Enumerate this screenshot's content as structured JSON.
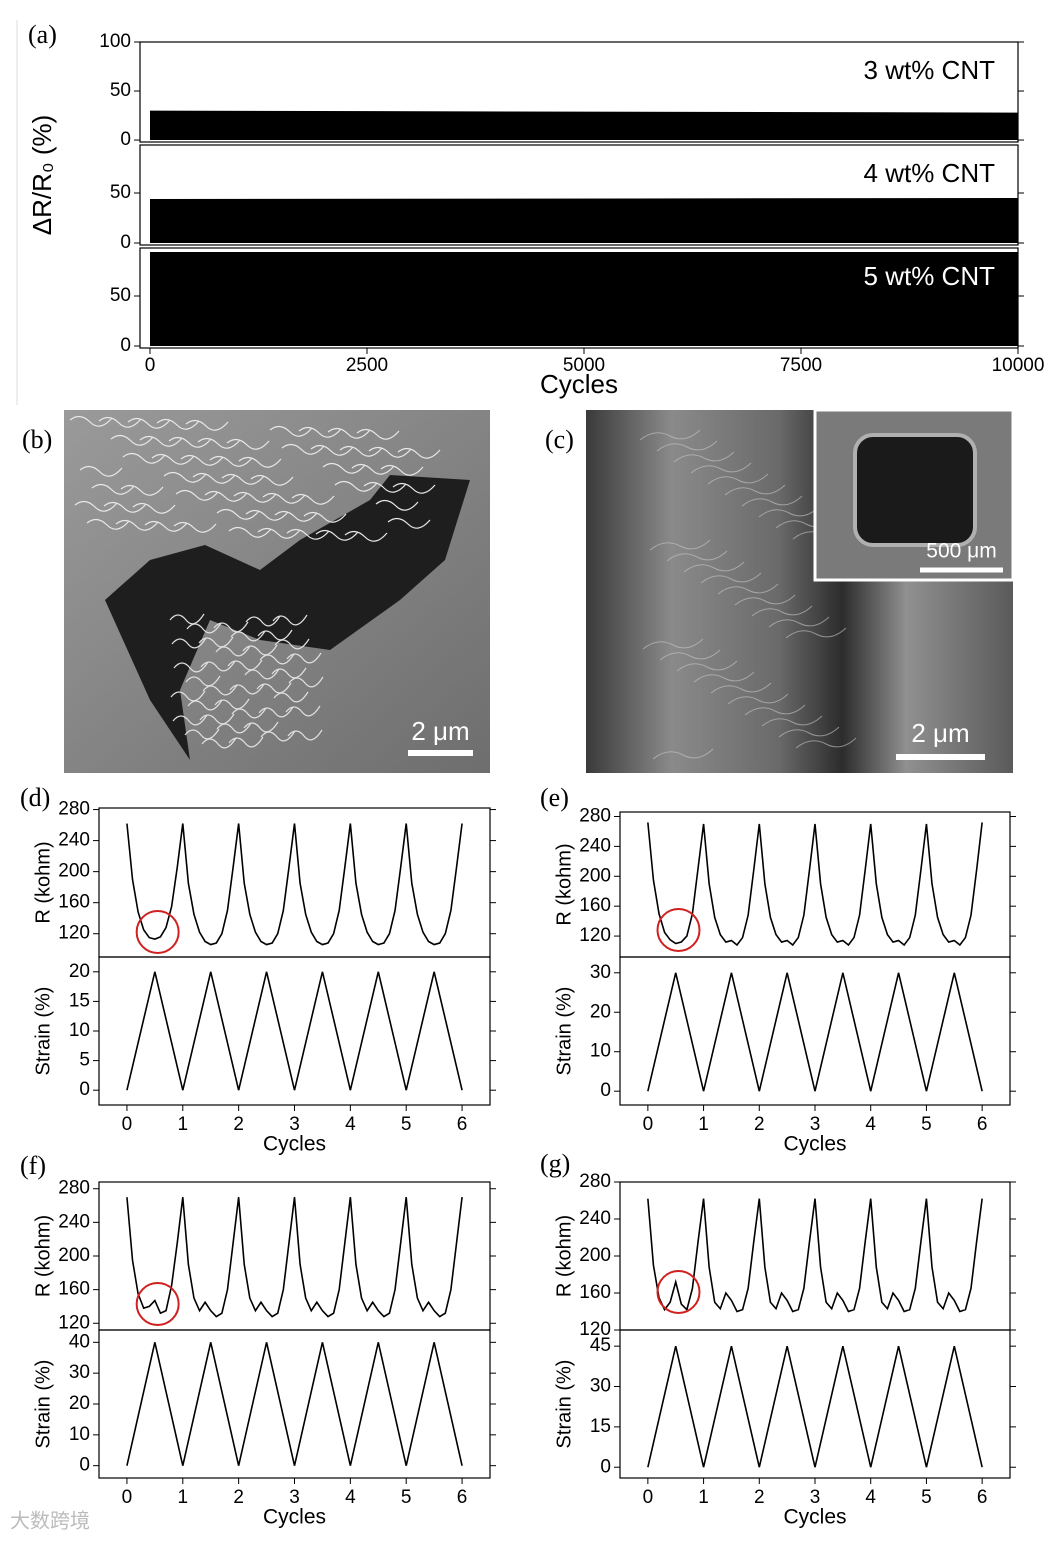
{
  "chart_data": [
    {
      "type": "stacked-area",
      "panel_label": "(a)",
      "ylabel": "ΔR/R₀ (%)",
      "xlabel": "Cycles",
      "xlim": [
        -115,
        10000
      ],
      "xticks": [
        0,
        2500,
        5000,
        7500,
        10000
      ],
      "color": "#000000",
      "panels": [
        {
          "label": "3 wt% CNT",
          "ylim": [
            -2,
            100
          ],
          "yticks": [
            0,
            50,
            100
          ],
          "x": [
            0,
            10000
          ],
          "values": [
            30,
            28
          ]
        },
        {
          "label": "4 wt% CNT",
          "ylim": [
            -2,
            98
          ],
          "yticks": [
            0,
            50
          ],
          "x": [
            0,
            10000
          ],
          "values": [
            44,
            45
          ]
        },
        {
          "label": "5 wt% CNT",
          "ylim": [
            -2,
            98
          ],
          "yticks": [
            0,
            50
          ],
          "x": [
            0,
            10000
          ],
          "values": [
            94,
            94
          ]
        }
      ]
    },
    {
      "type": "image",
      "panel_label": "(b)",
      "scale_bar": "2 μm"
    },
    {
      "type": "image",
      "panel_label": "(c)",
      "scale_bar": "2 μm",
      "inset_scale_bar": "500 μm"
    },
    {
      "type": "dual-line",
      "panel_label": "(d)",
      "xlabel": "Cycles",
      "xlim": [
        -0.5,
        6.5
      ],
      "xticks": [
        0,
        1,
        2,
        3,
        4,
        5,
        6
      ],
      "color": "#000000",
      "top": {
        "ylabel": "R (kohm)",
        "ylim": [
          90,
          282
        ],
        "yticks": [
          120,
          160,
          200,
          240,
          280
        ],
        "x": [
          0,
          0.1,
          0.2,
          0.3,
          0.4,
          0.5,
          0.6,
          0.7,
          0.8,
          0.9,
          1,
          1.1,
          1.2,
          1.3,
          1.4,
          1.5,
          1.6,
          1.7,
          1.8,
          1.9,
          2,
          2.1,
          2.2,
          2.3,
          2.4,
          2.5,
          2.6,
          2.7,
          2.8,
          2.9,
          3,
          3.1,
          3.2,
          3.3,
          3.4,
          3.5,
          3.6,
          3.7,
          3.8,
          3.9,
          4,
          4.1,
          4.2,
          4.3,
          4.4,
          4.5,
          4.6,
          4.7,
          4.8,
          4.9,
          5,
          5.1,
          5.2,
          5.3,
          5.4,
          5.5,
          5.6,
          5.7,
          5.8,
          5.9,
          6
        ],
        "values": [
          262,
          190,
          148,
          125,
          115,
          113,
          116,
          128,
          155,
          205,
          262,
          185,
          145,
          122,
          110,
          106,
          108,
          120,
          150,
          205,
          262,
          185,
          145,
          122,
          110,
          106,
          108,
          120,
          150,
          205,
          262,
          185,
          145,
          122,
          110,
          106,
          108,
          120,
          150,
          205,
          262,
          185,
          145,
          122,
          110,
          106,
          108,
          120,
          150,
          205,
          262,
          185,
          145,
          122,
          110,
          106,
          108,
          120,
          150,
          205,
          262
        ]
      },
      "bottom": {
        "ylabel": "Strain (%)",
        "ylim": [
          -2.5,
          22.5
        ],
        "yticks": [
          0,
          5,
          10,
          15,
          20
        ],
        "x": [
          0,
          0.5,
          1,
          1.5,
          2,
          2.5,
          3,
          3.5,
          4,
          4.5,
          5,
          5.5,
          6
        ],
        "values": [
          0,
          20,
          0,
          20,
          0,
          20,
          0,
          20,
          0,
          20,
          0,
          20,
          0
        ]
      }
    },
    {
      "type": "dual-line",
      "panel_label": "(e)",
      "xlabel": "Cycles",
      "xlim": [
        -0.5,
        6.5
      ],
      "xticks": [
        0,
        1,
        2,
        3,
        4,
        5,
        6
      ],
      "color": "#000000",
      "top": {
        "ylabel": "R (kohm)",
        "ylim": [
          92,
          286
        ],
        "yticks": [
          120,
          160,
          200,
          240,
          280
        ],
        "x": [
          0,
          0.1,
          0.2,
          0.3,
          0.4,
          0.5,
          0.6,
          0.7,
          0.8,
          0.9,
          1,
          1.1,
          1.2,
          1.3,
          1.4,
          1.5,
          1.6,
          1.7,
          1.8,
          1.9,
          2,
          2.1,
          2.2,
          2.3,
          2.4,
          2.5,
          2.6,
          2.7,
          2.8,
          2.9,
          3,
          3.1,
          3.2,
          3.3,
          3.4,
          3.5,
          3.6,
          3.7,
          3.8,
          3.9,
          4,
          4.1,
          4.2,
          4.3,
          4.4,
          4.5,
          4.6,
          4.7,
          4.8,
          4.9,
          5,
          5.1,
          5.2,
          5.3,
          5.4,
          5.5,
          5.6,
          5.7,
          5.8,
          5.9,
          6
        ],
        "values": [
          272,
          195,
          150,
          125,
          115,
          110,
          112,
          120,
          150,
          210,
          270,
          190,
          145,
          122,
          112,
          114,
          108,
          118,
          148,
          208,
          270,
          190,
          145,
          122,
          112,
          114,
          108,
          118,
          148,
          208,
          270,
          190,
          145,
          122,
          112,
          114,
          108,
          118,
          148,
          208,
          270,
          190,
          145,
          122,
          112,
          114,
          108,
          118,
          148,
          208,
          270,
          190,
          145,
          122,
          112,
          114,
          108,
          118,
          148,
          208,
          272
        ]
      },
      "bottom": {
        "ylabel": "Strain (%)",
        "ylim": [
          -3.5,
          34
        ],
        "yticks": [
          0,
          10,
          20,
          30
        ],
        "x": [
          0,
          0.5,
          1,
          1.5,
          2,
          2.5,
          3,
          3.5,
          4,
          4.5,
          5,
          5.5,
          6
        ],
        "values": [
          0,
          30,
          0,
          30,
          0,
          30,
          0,
          30,
          0,
          30,
          0,
          30,
          0
        ]
      }
    },
    {
      "type": "dual-line",
      "panel_label": "(f)",
      "xlabel": "Cycles",
      "xlim": [
        -0.5,
        6.5
      ],
      "xticks": [
        0,
        1,
        2,
        3,
        4,
        5,
        6
      ],
      "color": "#000000",
      "top": {
        "ylabel": "R (kohm)",
        "ylim": [
          112,
          288
        ],
        "yticks": [
          120,
          160,
          200,
          240,
          280
        ],
        "x": [
          0,
          0.1,
          0.2,
          0.3,
          0.4,
          0.5,
          0.6,
          0.7,
          0.8,
          0.9,
          1,
          1.1,
          1.2,
          1.3,
          1.4,
          1.5,
          1.6,
          1.7,
          1.8,
          1.9,
          2,
          2.1,
          2.2,
          2.3,
          2.4,
          2.5,
          2.6,
          2.7,
          2.8,
          2.9,
          3,
          3.1,
          3.2,
          3.3,
          3.4,
          3.5,
          3.6,
          3.7,
          3.8,
          3.9,
          4,
          4.1,
          4.2,
          4.3,
          4.4,
          4.5,
          4.6,
          4.7,
          4.8,
          4.9,
          5,
          5.1,
          5.2,
          5.3,
          5.4,
          5.5,
          5.6,
          5.7,
          5.8,
          5.9,
          6
        ],
        "values": [
          270,
          195,
          155,
          138,
          140,
          147,
          132,
          135,
          165,
          215,
          270,
          190,
          150,
          135,
          145,
          135,
          128,
          132,
          160,
          215,
          270,
          190,
          150,
          135,
          145,
          135,
          128,
          132,
          160,
          215,
          270,
          190,
          150,
          135,
          145,
          135,
          128,
          132,
          160,
          215,
          270,
          190,
          150,
          135,
          145,
          135,
          128,
          132,
          160,
          215,
          270,
          190,
          150,
          135,
          145,
          135,
          128,
          132,
          160,
          215,
          270
        ]
      },
      "bottom": {
        "ylabel": "Strain (%)",
        "ylim": [
          -4,
          44
        ],
        "yticks": [
          0,
          10,
          20,
          30,
          40
        ],
        "x": [
          0,
          0.5,
          1,
          1.5,
          2,
          2.5,
          3,
          3.5,
          4,
          4.5,
          5,
          5.5,
          6
        ],
        "values": [
          0,
          40,
          0,
          40,
          0,
          40,
          0,
          40,
          0,
          40,
          0,
          40,
          0
        ]
      }
    },
    {
      "type": "dual-line",
      "panel_label": "(g)",
      "xlabel": "Cycles",
      "xlim": [
        -0.5,
        6.5
      ],
      "xticks": [
        0,
        1,
        2,
        3,
        4,
        5,
        6
      ],
      "color": "#000000",
      "top": {
        "ylabel": "R (kohm)",
        "ylim": [
          120,
          280
        ],
        "yticks": [
          120,
          160,
          200,
          240,
          280
        ],
        "x": [
          0,
          0.1,
          0.2,
          0.3,
          0.4,
          0.5,
          0.6,
          0.7,
          0.8,
          0.9,
          1,
          1.1,
          1.2,
          1.3,
          1.4,
          1.5,
          1.6,
          1.7,
          1.8,
          1.9,
          2,
          2.1,
          2.2,
          2.3,
          2.4,
          2.5,
          2.6,
          2.7,
          2.8,
          2.9,
          3,
          3.1,
          3.2,
          3.3,
          3.4,
          3.5,
          3.6,
          3.7,
          3.8,
          3.9,
          4,
          4.1,
          4.2,
          4.3,
          4.4,
          4.5,
          4.6,
          4.7,
          4.8,
          4.9,
          5,
          5.1,
          5.2,
          5.3,
          5.4,
          5.5,
          5.6,
          5.7,
          5.8,
          5.9,
          6
        ],
        "values": [
          262,
          190,
          155,
          142,
          150,
          172,
          148,
          142,
          165,
          215,
          262,
          188,
          150,
          143,
          160,
          152,
          140,
          142,
          165,
          215,
          262,
          188,
          150,
          143,
          160,
          152,
          140,
          142,
          165,
          215,
          262,
          188,
          150,
          143,
          160,
          152,
          140,
          142,
          165,
          215,
          262,
          188,
          150,
          143,
          160,
          152,
          140,
          142,
          165,
          215,
          262,
          188,
          150,
          143,
          160,
          152,
          140,
          142,
          165,
          215,
          262
        ]
      },
      "bottom": {
        "ylabel": "Strain (%)",
        "ylim": [
          -4,
          51
        ],
        "yticks": [
          0,
          15,
          30,
          45
        ],
        "x": [
          0,
          0.5,
          1,
          1.5,
          2,
          2.5,
          3,
          3.5,
          4,
          4.5,
          5,
          5.5,
          6
        ],
        "values": [
          0,
          45,
          0,
          45,
          0,
          45,
          0,
          45,
          0,
          45,
          0,
          45,
          0
        ]
      }
    }
  ],
  "watermark": "大数跨境"
}
